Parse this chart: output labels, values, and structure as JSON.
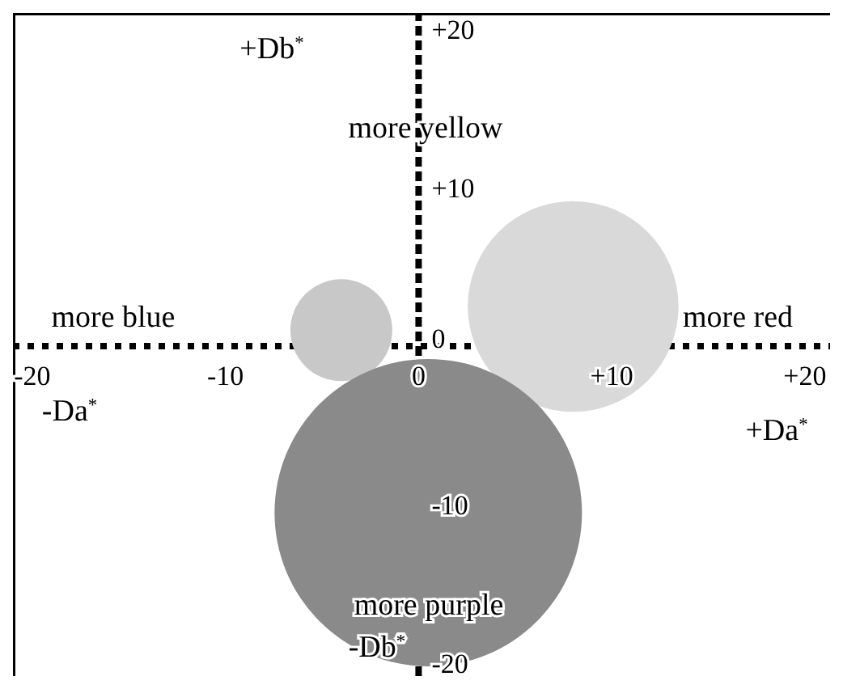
{
  "chart_data": {
    "type": "bubble",
    "x": [
      -4,
      8,
      0.5
    ],
    "values": [
      1,
      2.5,
      -10.5
    ],
    "sizes": [
      0.11,
      0.47,
      1
    ],
    "colors": [
      "#c8c8c8",
      "#d9d9d9",
      "#8a8a8a"
    ],
    "xlim": [
      -21,
      21.3
    ],
    "ylim": [
      -20.8,
      21
    ],
    "xticks": [
      -20,
      -10,
      0,
      {
        "value": 10,
        "label": "+10"
      },
      {
        "value": 20,
        "label": "+20"
      }
    ],
    "yticks": [
      {
        "value": 20,
        "label": "+20"
      },
      {
        "value": 10,
        "label": "+10"
      },
      0,
      -10,
      -20
    ],
    "annotations": [
      "+Db$^{*}$",
      "more yellow",
      "more blue",
      "more red",
      "-Da$^{*}$",
      "+Da$^{*}$",
      "more purple",
      "-Db$^{*}$"
    ],
    "ref_lines": [
      {
        "axis": "y",
        "value": 0,
        "color": "#000000",
        "line_style": "dotted"
      },
      {
        "axis": "x",
        "value": 0,
        "color": "#000000",
        "line_style": "dashed"
      }
    ],
    "legend": false,
    "grid": false
  }
}
